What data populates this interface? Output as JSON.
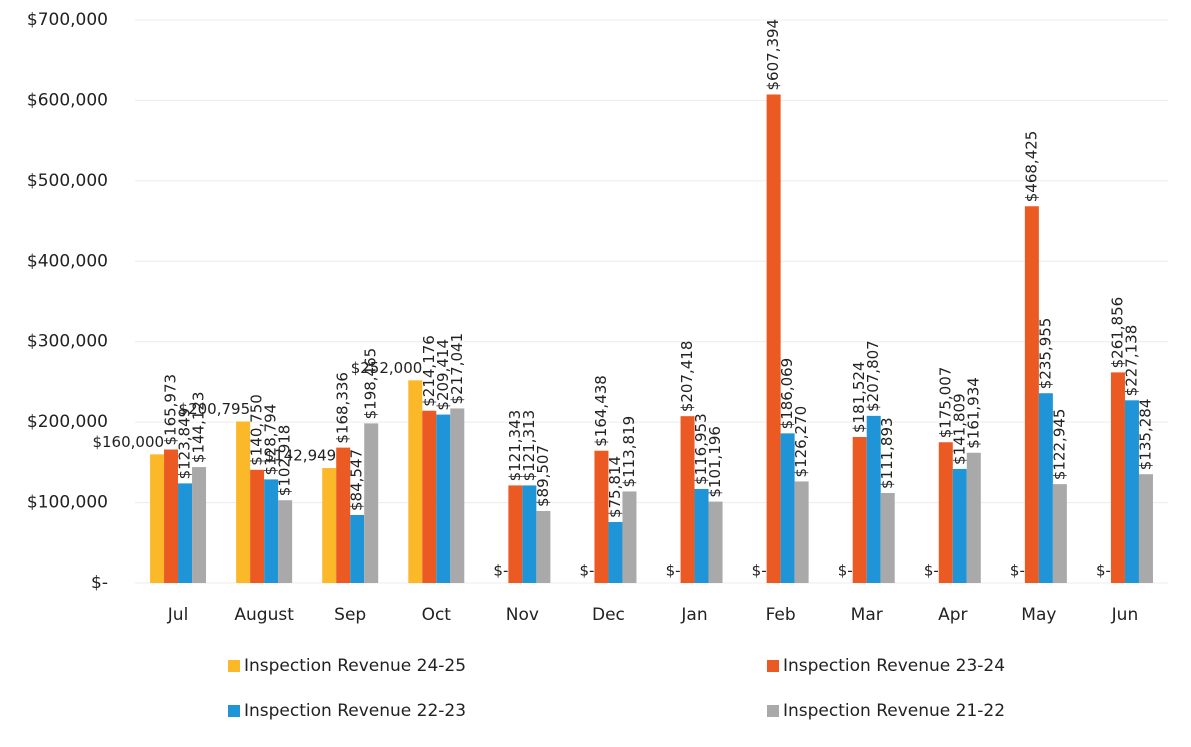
{
  "chart_data": {
    "type": "bar",
    "categories": [
      "Jul",
      "August",
      "Sep",
      "Oct",
      "Nov",
      "Dec",
      "Jan",
      "Feb",
      "Mar",
      "Apr",
      "May",
      "Jun"
    ],
    "series": [
      {
        "name": "Inspection Revenue 24-25",
        "color": "#fbb92a",
        "values": [
          160000,
          200795,
          142949,
          252000,
          0,
          0,
          0,
          0,
          0,
          0,
          0,
          0
        ],
        "value_labels": [
          "$160,000",
          "$200,795",
          "$142,949",
          "$252,000",
          "$-",
          "$-",
          "$-",
          "$-",
          "$-",
          "$-",
          "$-",
          "$-"
        ]
      },
      {
        "name": "Inspection Revenue 23-24",
        "color": "#ec5a24",
        "values": [
          165973,
          140750,
          168336,
          214176,
          121343,
          164438,
          207418,
          607394,
          181524,
          175007,
          468425,
          261856
        ],
        "value_labels": [
          "$165,973",
          "$140,750",
          "$168,336",
          "$214,176",
          "$121,343",
          "$164,438",
          "$207,418",
          "$607,394",
          "$181,524",
          "$175,007",
          "$468,425",
          "$261,856"
        ]
      },
      {
        "name": "Inspection Revenue 22-23",
        "color": "#1f95d8",
        "values": [
          123849,
          128794,
          84547,
          209414,
          121313,
          75814,
          116953,
          186069,
          207807,
          141809,
          235955,
          227138
        ],
        "value_labels": [
          "$123,849",
          "$128,794",
          "$84,547",
          "$209,414",
          "$121,313",
          "$75,814",
          "$116,953",
          "$186,069",
          "$207,807",
          "$141,809",
          "$235,955",
          "$227,138"
        ]
      },
      {
        "name": "Inspection Revenue 21-22",
        "color": "#a9a9a9",
        "values": [
          144123,
          102918,
          198465,
          217041,
          89507,
          113819,
          101196,
          126270,
          111893,
          161934,
          122945,
          135284
        ],
        "value_labels": [
          "$144,123",
          "$102,918",
          "$198,465",
          "$217,041",
          "$89,507",
          "$113,819",
          "$101,196",
          "$126,270",
          "$111,893",
          "$161,934",
          "$122,945",
          "$135,284"
        ]
      }
    ],
    "ylim": [
      0,
      700000
    ],
    "yticks": [
      {
        "value": 0,
        "label": "$-"
      },
      {
        "value": 100000,
        "label": "$100,000"
      },
      {
        "value": 200000,
        "label": "$200,000"
      },
      {
        "value": 300000,
        "label": "$300,000"
      },
      {
        "value": 400000,
        "label": "$400,000"
      },
      {
        "value": 500000,
        "label": "$500,000"
      },
      {
        "value": 600000,
        "label": "$600,000"
      },
      {
        "value": 700000,
        "label": "$700,000"
      }
    ],
    "grid": true
  }
}
